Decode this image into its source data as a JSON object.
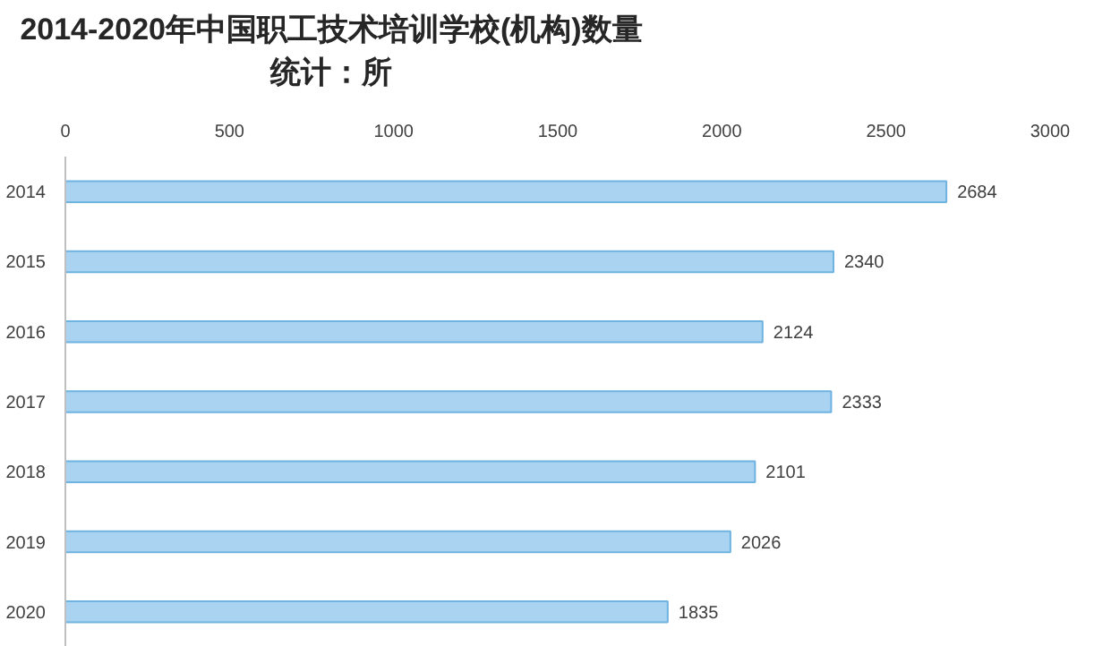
{
  "chart_data": {
    "type": "bar",
    "orientation": "horizontal",
    "title": "2014-2020年中国职工技术培训学校(机构)数量统计：所",
    "categories": [
      "2014",
      "2015",
      "2016",
      "2017",
      "2018",
      "2019",
      "2020"
    ],
    "values": [
      2684,
      2340,
      2124,
      2333,
      2101,
      2026,
      1835
    ],
    "color": "#a9d3f0",
    "xlim": [
      0,
      3000
    ],
    "xticks": [
      0,
      500,
      1000,
      1500,
      2000,
      2500,
      3000
    ],
    "grid": false,
    "data_labels": true
  }
}
